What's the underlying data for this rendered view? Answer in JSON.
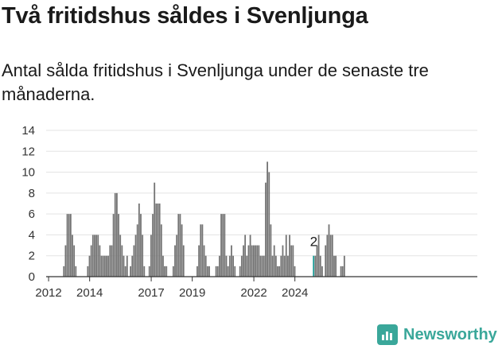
{
  "header": {
    "title": "Två fritidshus såldes i Svenljunga",
    "subtitle": "Antal sålda fritidshus i Svenljunga under de senaste tre månaderna."
  },
  "brand": {
    "name": "Newsworthy",
    "color": "#3aa79a"
  },
  "colors": {
    "bar": "#737373",
    "highlight": "#1f9e98",
    "grid": "#e3e3e3",
    "axis": "#333333"
  },
  "chart_data": {
    "type": "bar",
    "title": "",
    "xlabel": "",
    "ylabel": "",
    "ylim": [
      0,
      14
    ],
    "yticks": [
      0,
      2,
      4,
      6,
      8,
      10,
      12,
      14
    ],
    "xticks": [
      2012,
      2014,
      2017,
      2019,
      2022,
      2024
    ],
    "grid": true,
    "start": "2012-01",
    "frequency": "monthly",
    "annotation": {
      "month": "2024-12",
      "text": "2"
    },
    "values": [
      0,
      0,
      0,
      0,
      0,
      0,
      0,
      0,
      0,
      1,
      3,
      6,
      6,
      6,
      4,
      3,
      1,
      0,
      0,
      0,
      0,
      0,
      0,
      1,
      2,
      3,
      4,
      4,
      4,
      4,
      3,
      2,
      2,
      2,
      2,
      2,
      3,
      3,
      6,
      8,
      8,
      6,
      4,
      3,
      2,
      1,
      2,
      0,
      1,
      2,
      3,
      4,
      5,
      7,
      6,
      4,
      1,
      0,
      0,
      1,
      4,
      6,
      9,
      7,
      7,
      7,
      5,
      2,
      1,
      1,
      0,
      0,
      0,
      1,
      3,
      4,
      6,
      6,
      5,
      3,
      0,
      0,
      0,
      0,
      0,
      0,
      0,
      1,
      3,
      5,
      5,
      3,
      2,
      1,
      1,
      0,
      0,
      0,
      1,
      1,
      2,
      6,
      6,
      6,
      2,
      1,
      2,
      3,
      2,
      1,
      0,
      0,
      1,
      2,
      3,
      4,
      2,
      3,
      4,
      3,
      3,
      3,
      3,
      3,
      2,
      2,
      2,
      9,
      11,
      10,
      5,
      2,
      3,
      2,
      1,
      1,
      2,
      3,
      2,
      4,
      2,
      4,
      3,
      3,
      1,
      0,
      0,
      0,
      0,
      0,
      0,
      0,
      0,
      0,
      0,
      2,
      2,
      3,
      4,
      2,
      1,
      0,
      3,
      4,
      5,
      4,
      4,
      2,
      2,
      0,
      0,
      1,
      1,
      2
    ]
  }
}
